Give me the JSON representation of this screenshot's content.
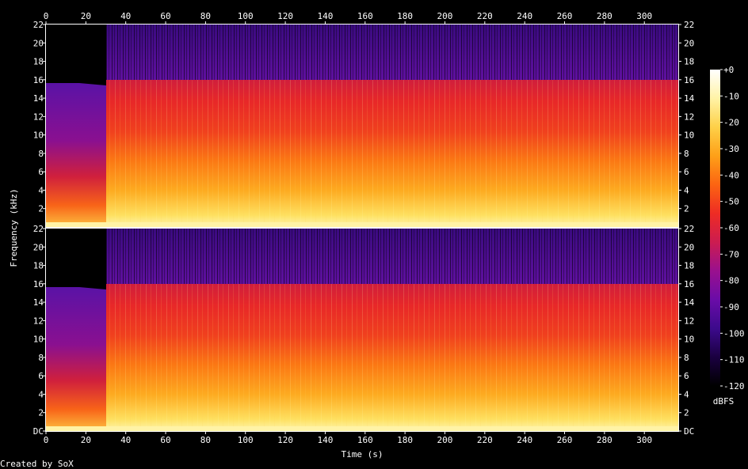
{
  "chart_data": {
    "type": "heatmap",
    "title": "",
    "xlabel": "Time (s)",
    "ylabel": "Frequency (kHz)",
    "x_ticks": [
      "0",
      "20",
      "40",
      "60",
      "80",
      "100",
      "120",
      "140",
      "160",
      "180",
      "200",
      "220",
      "240",
      "260",
      "280",
      "300"
    ],
    "xlim": [
      0,
      317
    ],
    "ylim": [
      0,
      22
    ],
    "channels": [
      {
        "y_ticks": [
          "22",
          "20",
          "18",
          "16",
          "14",
          "12",
          "10",
          "8",
          "6",
          "4",
          "2"
        ]
      },
      {
        "y_ticks": [
          "22",
          "20",
          "18",
          "16",
          "14",
          "12",
          "10",
          "8",
          "6",
          "4",
          "2",
          "DC"
        ]
      }
    ],
    "colorbar": {
      "label": "dBFS",
      "ticks": [
        "+0",
        "-10",
        "-20",
        "-30",
        "-40",
        "-50",
        "-60",
        "-70",
        "-80",
        "-90",
        "-100",
        "-110",
        "-120"
      ],
      "range": [
        -120,
        0
      ],
      "stops": [
        "#000000",
        "#1a0040",
        "#3c0a8c",
        "#6a0ca8",
        "#9a108e",
        "#cc1c50",
        "#ee2c24",
        "#fc6412",
        "#fea018",
        "#fed048",
        "#fff3a6",
        "#ffffff"
      ]
    },
    "intro": {
      "end_s": 30,
      "cutoff_khz": 15.5
    },
    "main": {
      "start_s": 30,
      "cutoff_khz": 16,
      "dark_band_above_cutoff": true
    },
    "credit": "Created by SoX"
  }
}
